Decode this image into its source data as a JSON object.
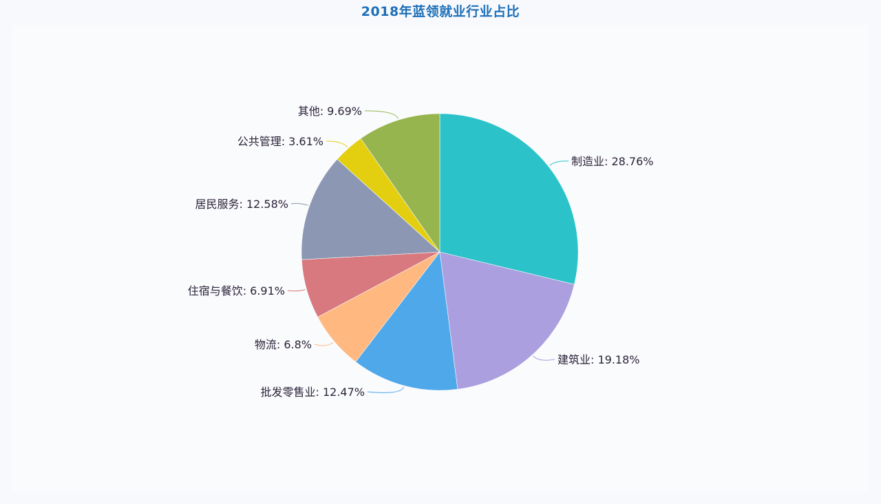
{
  "chart_data": {
    "type": "pie",
    "title": "2018年蓝领就业行业占比",
    "label_format": "{name}: {value}%",
    "start_angle_deg": 0,
    "direction": "clockwise",
    "series": [
      {
        "name": "制造业",
        "value": 28.76,
        "color": "#2bc3c9"
      },
      {
        "name": "建筑业",
        "value": 19.18,
        "color": "#ab9fdf"
      },
      {
        "name": "批发零售业",
        "value": 12.47,
        "color": "#4fa8ea"
      },
      {
        "name": "物流",
        "value": 6.8,
        "color": "#ffb87f"
      },
      {
        "name": "住宿与餐饮",
        "value": 6.91,
        "color": "#d8797f"
      },
      {
        "name": "居民服务",
        "value": 12.58,
        "color": "#8b97b3"
      },
      {
        "name": "公共管理",
        "value": 3.61,
        "color": "#e3cf10"
      },
      {
        "name": "其他",
        "value": 9.69,
        "color": "#97b54f"
      }
    ],
    "labels": [
      {
        "text": "制造业: 28.76%"
      },
      {
        "text": "建筑业: 19.18%"
      },
      {
        "text": "批发零售业: 12.47%"
      },
      {
        "text": "物流: 6.8%"
      },
      {
        "text": "住宿与餐饮: 6.91%"
      },
      {
        "text": "居民服务: 12.58%"
      },
      {
        "text": "公共管理: 3.61%"
      },
      {
        "text": "其他: 9.69%"
      }
    ]
  }
}
